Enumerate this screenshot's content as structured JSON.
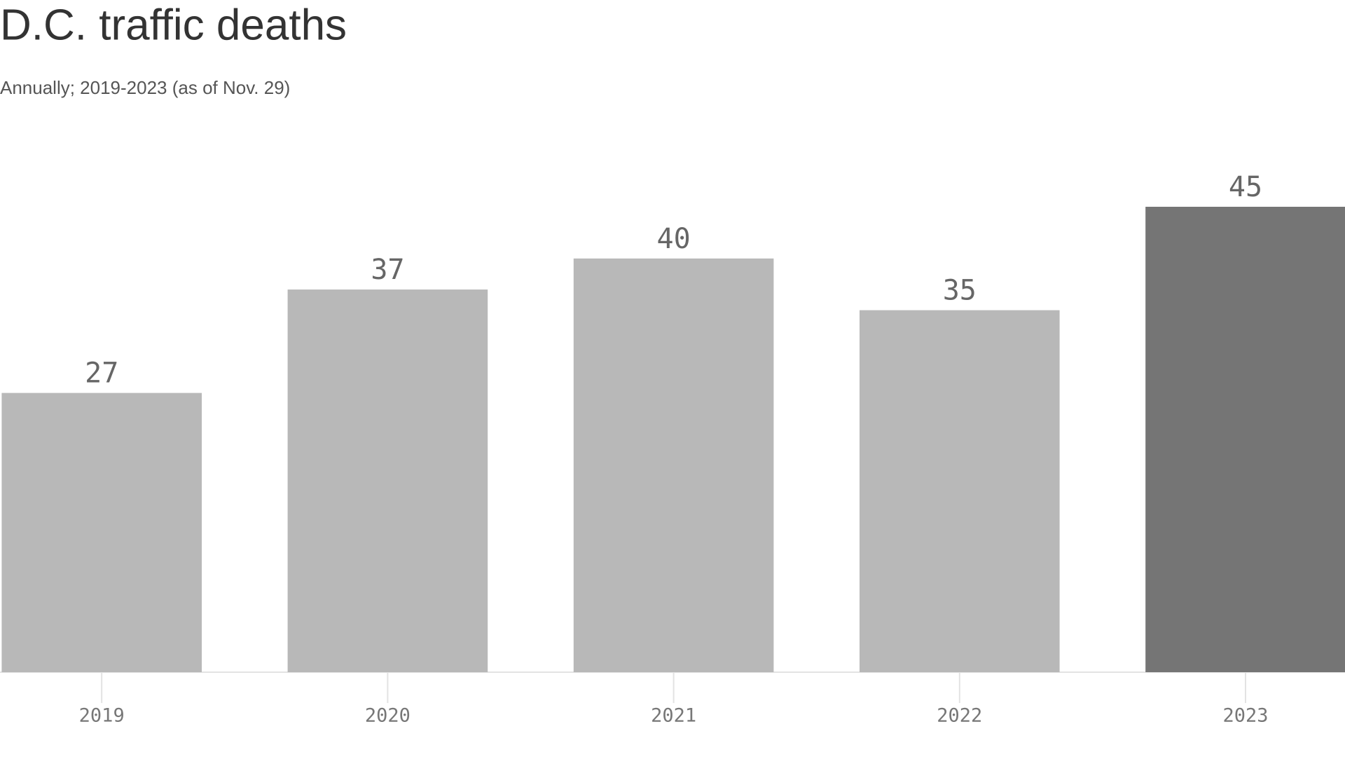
{
  "chart_data": {
    "type": "bar",
    "title": "D.C. traffic deaths",
    "subtitle": "Annually; 2019-2023 (as of Nov. 29)",
    "categories": [
      "2019",
      "2020",
      "2021",
      "2022",
      "2023"
    ],
    "values": [
      27,
      37,
      40,
      35,
      45
    ],
    "colors": [
      "#b8b8b8",
      "#b8b8b8",
      "#b8b8b8",
      "#b8b8b8",
      "#757575"
    ]
  }
}
